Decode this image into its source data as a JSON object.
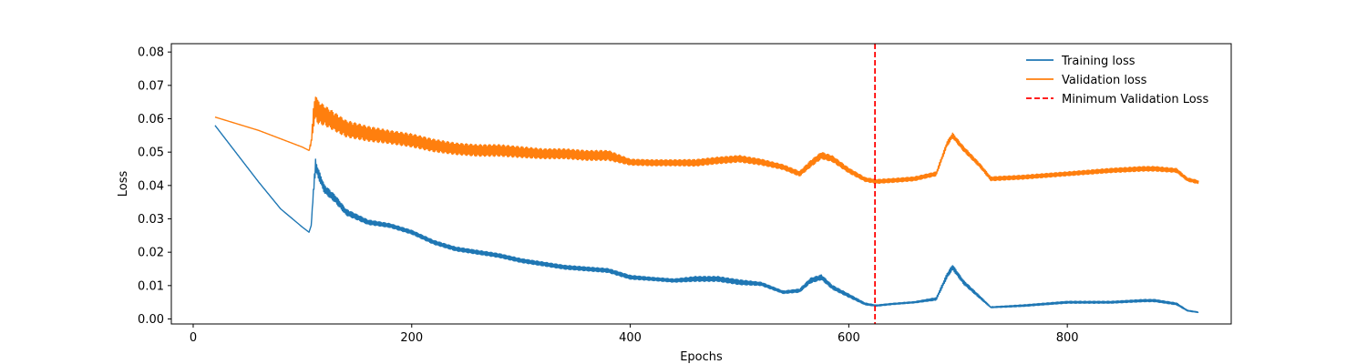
{
  "chart_data": {
    "type": "line",
    "title": "",
    "xlabel": "Epochs",
    "ylabel": "Loss",
    "xlim": [
      -20,
      950
    ],
    "ylim": [
      -0.0015,
      0.0825
    ],
    "xticks": [
      0,
      200,
      400,
      600,
      800
    ],
    "xtick_labels": [
      "0",
      "200",
      "400",
      "600",
      "800"
    ],
    "yticks": [
      0.0,
      0.01,
      0.02,
      0.03,
      0.04,
      0.05,
      0.06,
      0.07,
      0.08
    ],
    "ytick_labels": [
      "0.00",
      "0.01",
      "0.02",
      "0.03",
      "0.04",
      "0.05",
      "0.06",
      "0.07",
      "0.08"
    ],
    "grid": false,
    "legend_position": "top-right",
    "series": [
      {
        "name": "Training loss",
        "color": "#1f77b4",
        "x": [
          20,
          40,
          60,
          80,
          100,
          106,
          108,
          110,
          112,
          114,
          120,
          130,
          140,
          160,
          180,
          200,
          220,
          240,
          260,
          280,
          300,
          320,
          340,
          360,
          380,
          400,
          420,
          440,
          460,
          480,
          500,
          520,
          540,
          555,
          565,
          575,
          585,
          600,
          615,
          625,
          640,
          660,
          680,
          690,
          695,
          705,
          720,
          730,
          760,
          800,
          840,
          870,
          880,
          900,
          910,
          920
        ],
        "y": [
          0.058,
          0.0495,
          0.041,
          0.033,
          0.0275,
          0.026,
          0.028,
          0.038,
          0.046,
          0.044,
          0.039,
          0.036,
          0.032,
          0.029,
          0.028,
          0.026,
          0.023,
          0.021,
          0.02,
          0.019,
          0.0175,
          0.0165,
          0.0155,
          0.015,
          0.0145,
          0.0125,
          0.012,
          0.0115,
          0.012,
          0.012,
          0.011,
          0.0105,
          0.008,
          0.0085,
          0.0115,
          0.0125,
          0.0095,
          0.007,
          0.0045,
          0.004,
          0.0045,
          0.005,
          0.006,
          0.013,
          0.0155,
          0.011,
          0.0065,
          0.0035,
          0.004,
          0.005,
          0.005,
          0.0055,
          0.0055,
          0.0045,
          0.0025,
          0.002
        ],
        "noise": [
          0,
          0,
          0,
          0,
          0,
          0,
          0,
          0.002,
          0.004,
          0.003,
          0.0025,
          0.0022,
          0.0018,
          0.0014,
          0.0012,
          0.0012,
          0.0012,
          0.0012,
          0.0012,
          0.0012,
          0.0012,
          0.0012,
          0.0012,
          0.0012,
          0.0012,
          0.0012,
          0.001,
          0.001,
          0.0015,
          0.0015,
          0.0015,
          0.001,
          0.0008,
          0.001,
          0.0015,
          0.0015,
          0.0012,
          0.001,
          0.0006,
          0.0004,
          0.0004,
          0.0004,
          0.0008,
          0.0015,
          0.0015,
          0.0012,
          0.0008,
          0.0003,
          0.0005,
          0.0006,
          0.0006,
          0.0007,
          0.0007,
          0.0006,
          0.0003,
          0.0002
        ]
      },
      {
        "name": "Validation loss",
        "color": "#ff7f0e",
        "x": [
          20,
          40,
          60,
          80,
          100,
          106,
          108,
          110,
          112,
          114,
          120,
          130,
          140,
          160,
          180,
          200,
          220,
          240,
          260,
          280,
          300,
          320,
          340,
          360,
          380,
          400,
          420,
          440,
          460,
          480,
          500,
          520,
          540,
          555,
          565,
          575,
          585,
          600,
          615,
          625,
          640,
          660,
          680,
          690,
          695,
          705,
          720,
          730,
          760,
          800,
          840,
          870,
          880,
          900,
          910,
          920
        ],
        "y": [
          0.0605,
          0.0585,
          0.0565,
          0.054,
          0.0515,
          0.0505,
          0.053,
          0.06,
          0.064,
          0.062,
          0.061,
          0.059,
          0.057,
          0.0555,
          0.0545,
          0.0535,
          0.052,
          0.051,
          0.0505,
          0.0505,
          0.05,
          0.0495,
          0.0495,
          0.049,
          0.049,
          0.047,
          0.0468,
          0.0468,
          0.0468,
          0.0475,
          0.048,
          0.047,
          0.0455,
          0.0435,
          0.0465,
          0.049,
          0.048,
          0.0445,
          0.0418,
          0.0412,
          0.0415,
          0.042,
          0.0435,
          0.0525,
          0.055,
          0.051,
          0.046,
          0.042,
          0.0425,
          0.0435,
          0.0445,
          0.045,
          0.045,
          0.0445,
          0.0418,
          0.041
        ],
        "noise": [
          0,
          0,
          0,
          0,
          0,
          0,
          0.002,
          0.006,
          0.008,
          0.007,
          0.006,
          0.0055,
          0.005,
          0.0045,
          0.004,
          0.004,
          0.0038,
          0.0035,
          0.0035,
          0.0035,
          0.0033,
          0.003,
          0.003,
          0.003,
          0.003,
          0.0018,
          0.0018,
          0.0018,
          0.002,
          0.002,
          0.002,
          0.0018,
          0.0015,
          0.0015,
          0.002,
          0.002,
          0.0018,
          0.0015,
          0.0012,
          0.0012,
          0.0012,
          0.0012,
          0.0012,
          0.0015,
          0.0015,
          0.0015,
          0.0012,
          0.0012,
          0.0012,
          0.0012,
          0.0013,
          0.0014,
          0.0014,
          0.0012,
          0.001,
          0.001
        ]
      }
    ],
    "vline": {
      "name": "Minimum Validation Loss",
      "x": 624,
      "color": "#ff0000",
      "style": "dashed"
    }
  }
}
